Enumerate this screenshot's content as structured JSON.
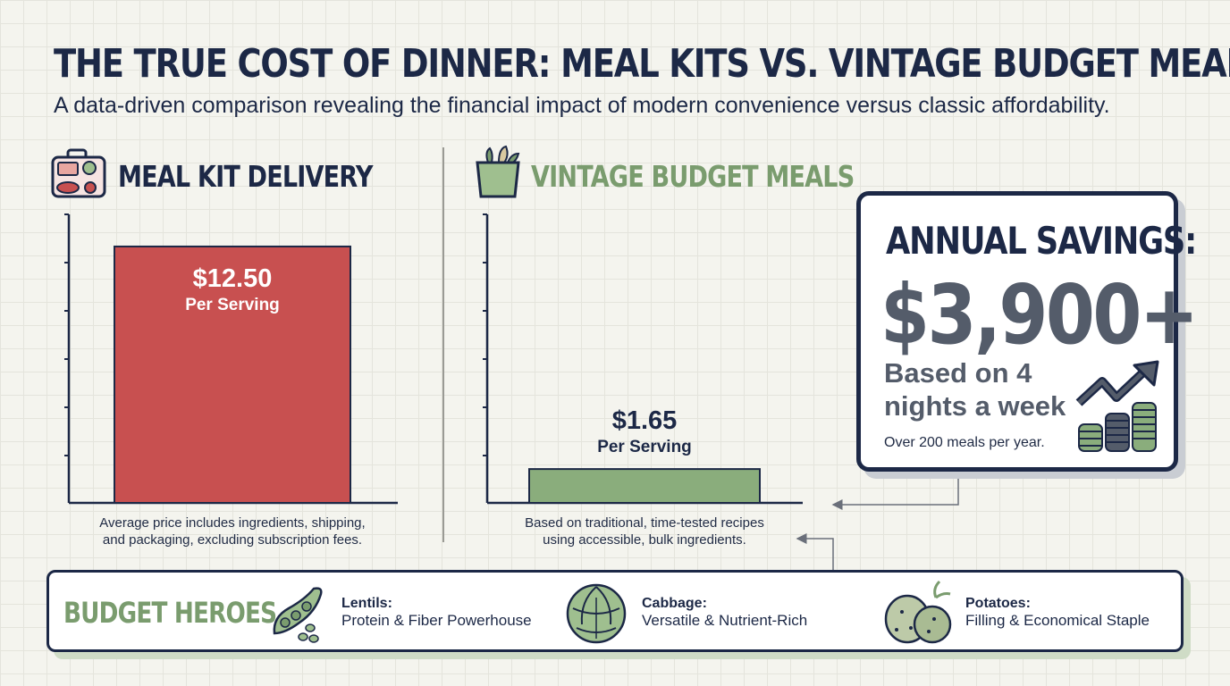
{
  "title": "THE TRUE COST OF DINNER: MEAL KITS VS. VINTAGE BUDGET MEALS",
  "subtitle": "A data-driven comparison revealing the financial impact of modern convenience versus classic affordability.",
  "colors": {
    "navy": "#1c2846",
    "kit_red": "#c85050",
    "vintage_green": "#8aad7c",
    "slate": "#545c6a"
  },
  "chart_data": [
    {
      "type": "bar",
      "title": "MEAL KIT DELIVERY",
      "icon": "lunchbox-icon",
      "categories": [
        "Meal Kit Delivery"
      ],
      "values": [
        12.5
      ],
      "value_label": "$12.50",
      "unit_label": "Per Serving",
      "ylim": [
        0,
        13.5
      ],
      "color": "#c85050",
      "note": [
        "Average price includes ingredients, shipping,",
        "and packaging, excluding subscription fees."
      ]
    },
    {
      "type": "bar",
      "title": "VINTAGE BUDGET MEALS",
      "icon": "grocery-bag-icon",
      "categories": [
        "Vintage Budget Meals"
      ],
      "values": [
        1.65
      ],
      "value_label": "$1.65",
      "unit_label": "Per Serving",
      "ylim": [
        0,
        13.5
      ],
      "color": "#8aad7c",
      "note": [
        "Based on traditional, time-tested recipes",
        "using accessible, bulk ingredients."
      ]
    }
  ],
  "savings": {
    "title": "ANNUAL SAVINGS:",
    "amount": "$3,900+",
    "basis": "Based on 4 nights a week",
    "footnote": "Over 200 meals per year.",
    "icon": "rising-coins-chart-icon"
  },
  "heroes": {
    "title": "BUDGET HEROES",
    "items": [
      {
        "name": "Lentils:",
        "desc": "Protein & Fiber Powerhouse",
        "icon": "lentil-pod-icon"
      },
      {
        "name": "Cabbage:",
        "desc": "Versatile & Nutrient-Rich",
        "icon": "cabbage-icon"
      },
      {
        "name": "Potatoes:",
        "desc": "Filling & Economical Staple",
        "icon": "potato-icon"
      }
    ]
  }
}
